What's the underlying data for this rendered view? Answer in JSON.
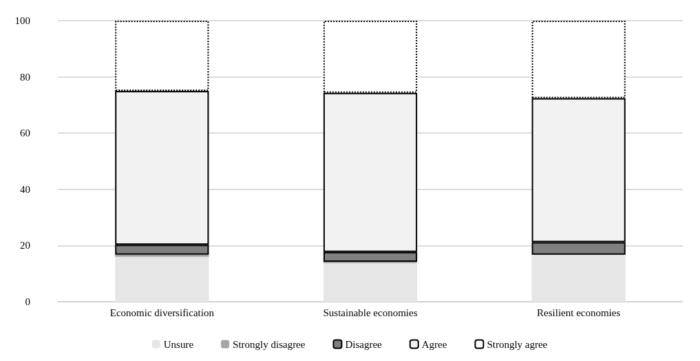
{
  "chart_data": {
    "type": "bar",
    "stacked": true,
    "categories": [
      "Economic diversification",
      "Sustainable economies",
      "Resilient economies"
    ],
    "series": [
      {
        "name": "Unsure",
        "color": "#e6e6e6",
        "values": [
          16.0,
          13.7,
          16.7
        ]
      },
      {
        "name": "Strongly disagree",
        "color": "#a6a6a6",
        "values": [
          0.7,
          0.5,
          0
        ]
      },
      {
        "name": "Disagree",
        "color": "#808080",
        "line_style": "solid",
        "values": [
          3.6,
          3.5,
          4.5
        ]
      },
      {
        "name": "Agree",
        "color": "#f2f2f2",
        "line_style": "solid",
        "values": [
          54.7,
          56.6,
          51.2
        ]
      },
      {
        "name": "Strongly agree",
        "color": "#ffffff",
        "line_style": "dotted",
        "values": [
          25.0,
          25.7,
          27.6
        ]
      }
    ],
    "ylim": [
      0,
      100
    ],
    "yticks": [
      0,
      20,
      40,
      60,
      80,
      100
    ],
    "grid": "y",
    "legend": "bottom"
  }
}
